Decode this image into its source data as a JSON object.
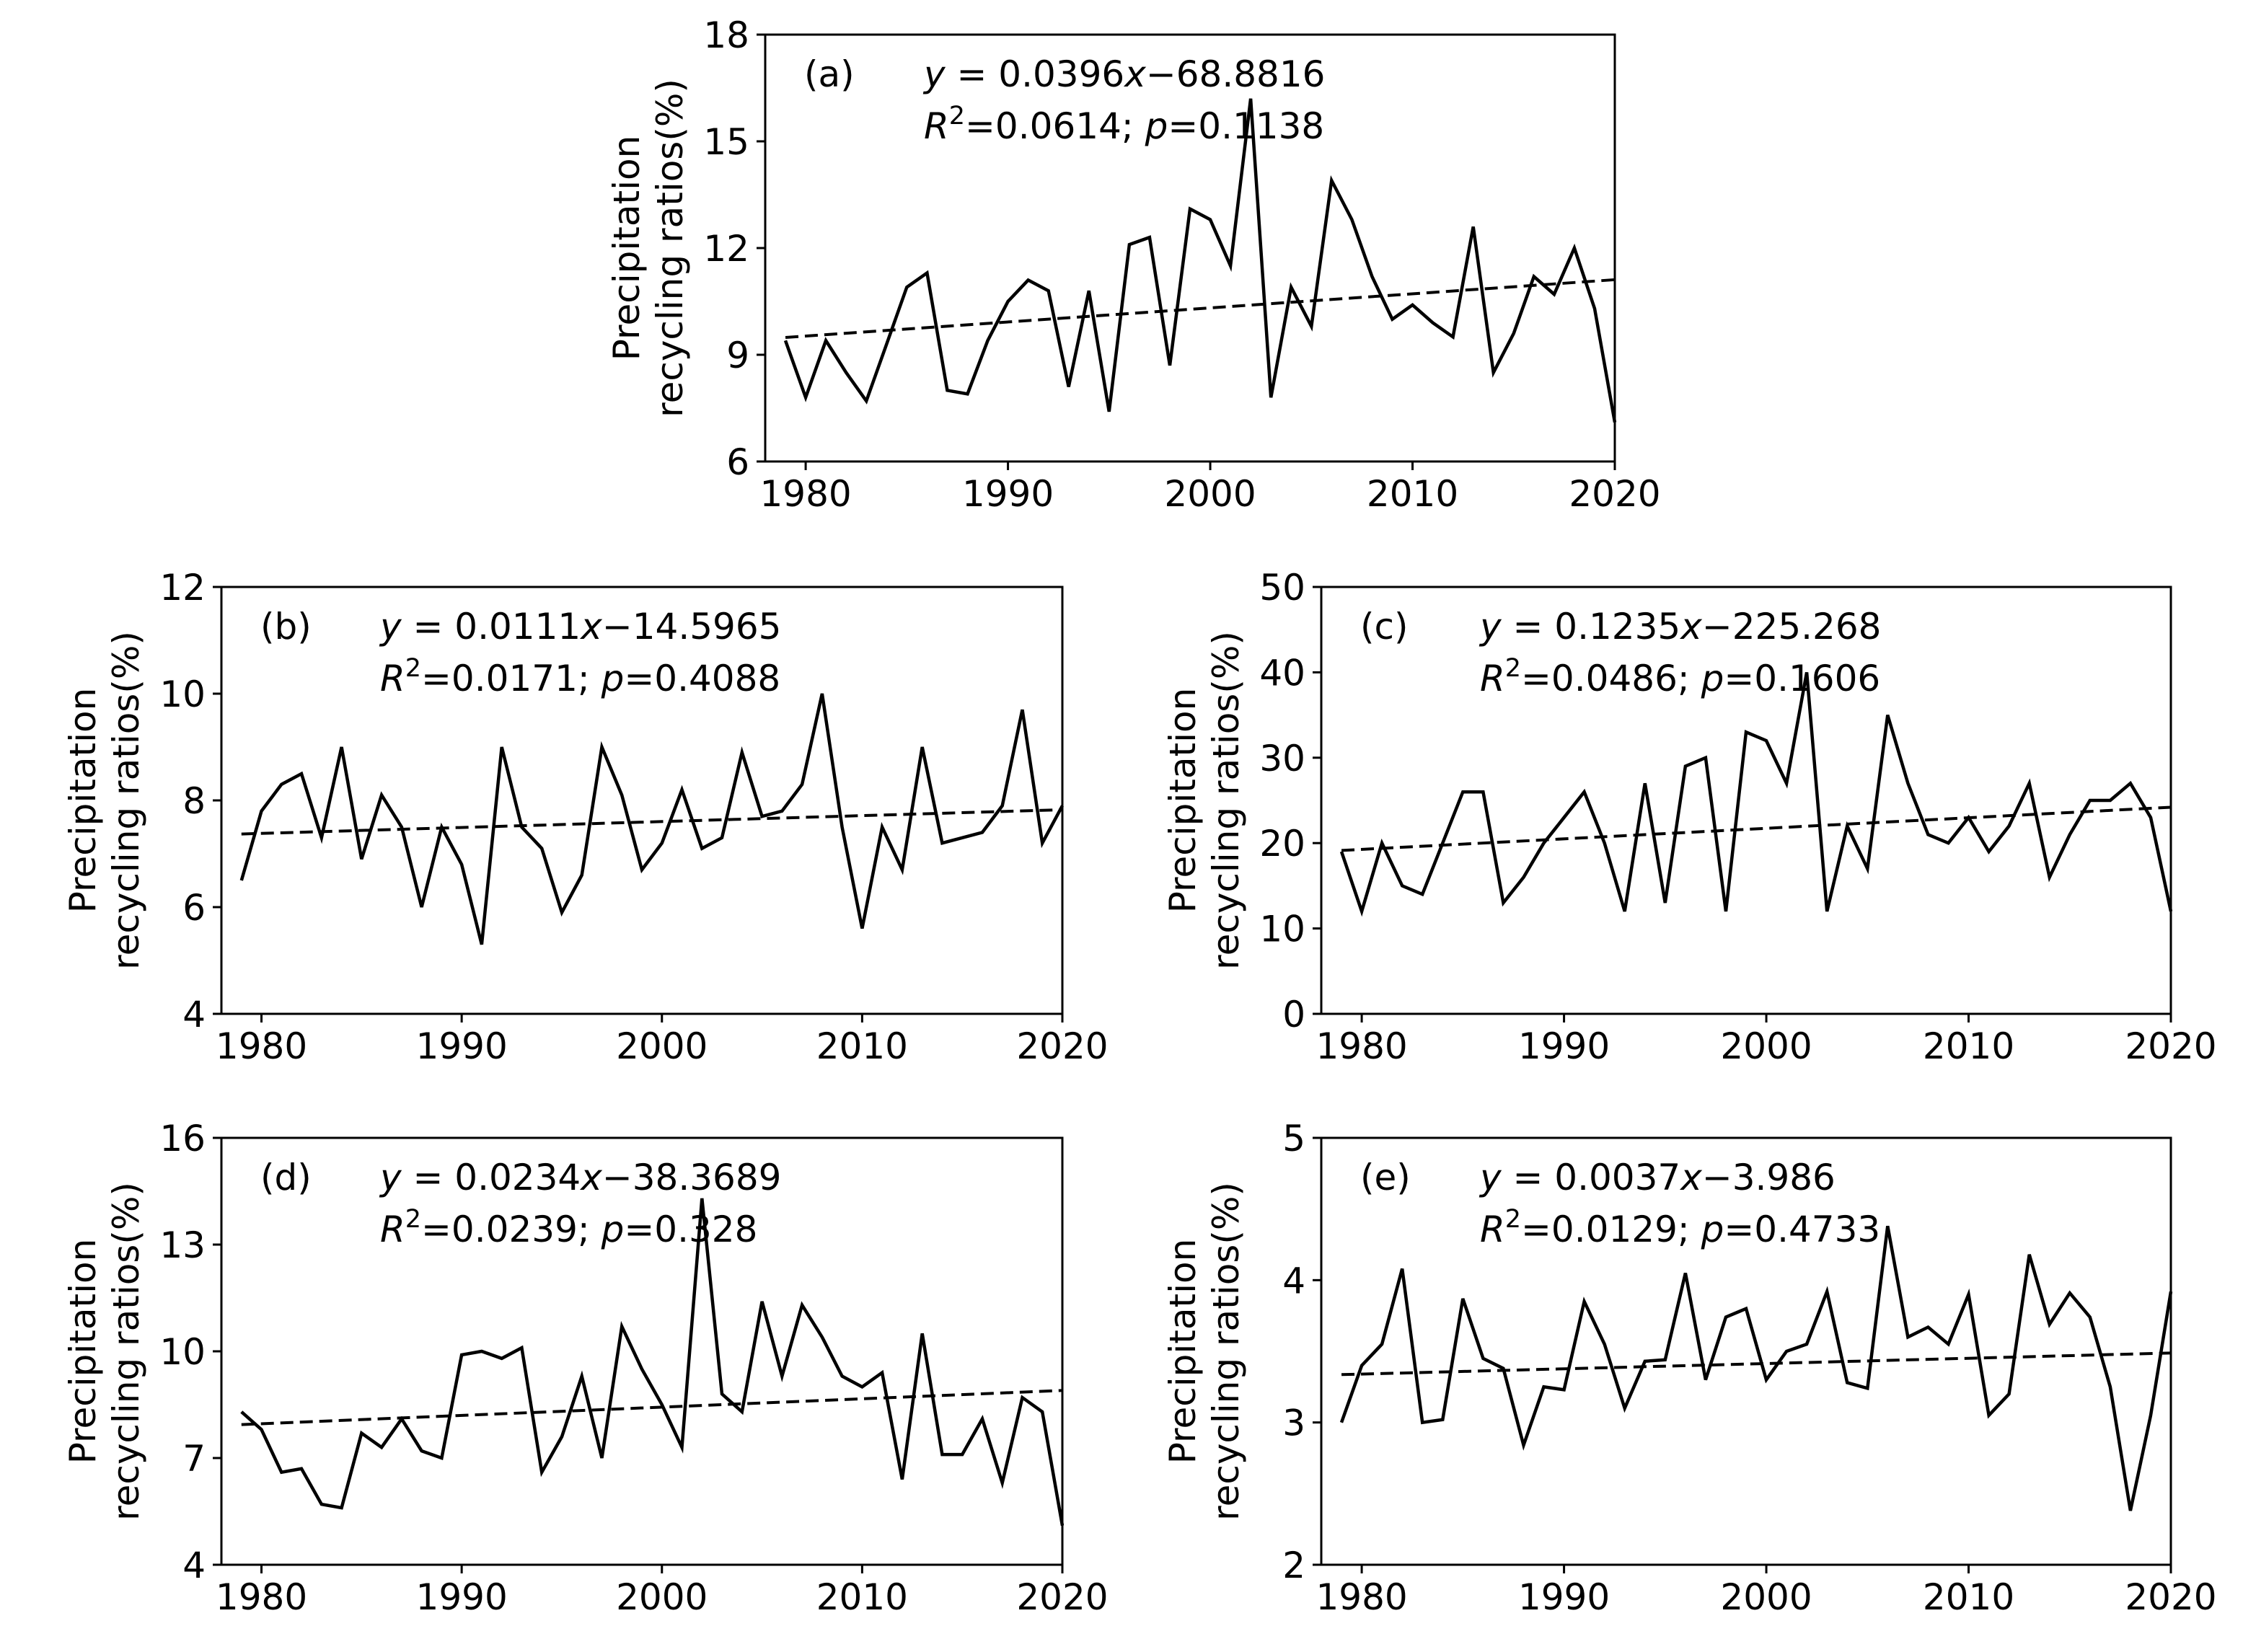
{
  "years_start": 1979,
  "chart_data": [
    {
      "type": "line",
      "panel": "(a)",
      "ylabel_line1": "Precipitation",
      "ylabel_line2": "recycling ratios(%)",
      "equation": "y = 0.0396x−68.8816",
      "r2_text": "R²=0.0614; p=0.1138",
      "slope": 0.0396,
      "intercept": -68.8816,
      "xlim": [
        1978,
        2020
      ],
      "xticks": [
        1980,
        1990,
        2000,
        2010,
        2020
      ],
      "ylim": [
        6,
        18
      ],
      "yticks": [
        6,
        9,
        12,
        15,
        18
      ],
      "x": [
        1979,
        1980,
        1981,
        1982,
        1983,
        1984,
        1985,
        1986,
        1987,
        1988,
        1989,
        1990,
        1991,
        1992,
        1993,
        1994,
        1995,
        1996,
        1997,
        1998,
        1999,
        2000,
        2001,
        2002,
        2003,
        2004,
        2005,
        2006,
        2007,
        2008,
        2009,
        2010,
        2011,
        2012,
        2013,
        2014,
        2015,
        2016,
        2017,
        2018,
        2019,
        2020
      ],
      "values": [
        9.4,
        7.8,
        9.4,
        8.5,
        7.7,
        9.3,
        10.9,
        11.3,
        8.0,
        7.9,
        9.4,
        10.5,
        11.1,
        10.8,
        8.1,
        10.8,
        7.4,
        12.1,
        12.3,
        8.7,
        13.1,
        12.8,
        11.5,
        16.2,
        7.8,
        10.9,
        9.8,
        13.9,
        12.8,
        11.2,
        10.0,
        10.4,
        9.9,
        9.5,
        12.6,
        8.5,
        9.6,
        11.2,
        10.7,
        12.0,
        10.3,
        7.1
      ]
    },
    {
      "type": "line",
      "panel": "(b)",
      "ylabel_line1": "Precipitation",
      "ylabel_line2": "recycling ratios(%)",
      "equation": "y = 0.0111x−14.5965",
      "r2_text": "R²=0.0171; p=0.4088",
      "slope": 0.0111,
      "intercept": -14.5965,
      "xlim": [
        1978,
        2020
      ],
      "xticks": [
        1980,
        1990,
        2000,
        2010,
        2020
      ],
      "ylim": [
        4,
        12
      ],
      "yticks": [
        4,
        6,
        8,
        10,
        12
      ],
      "x": [
        1979,
        1980,
        1981,
        1982,
        1983,
        1984,
        1985,
        1986,
        1987,
        1988,
        1989,
        1990,
        1991,
        1992,
        1993,
        1994,
        1995,
        1996,
        1997,
        1998,
        1999,
        2000,
        2001,
        2002,
        2003,
        2004,
        2005,
        2006,
        2007,
        2008,
        2009,
        2010,
        2011,
        2012,
        2013,
        2014,
        2015,
        2016,
        2017,
        2018,
        2019,
        2020
      ],
      "values": [
        6.5,
        7.8,
        8.3,
        8.5,
        7.3,
        9.0,
        6.9,
        8.1,
        7.5,
        6.0,
        7.5,
        6.8,
        5.3,
        9.0,
        7.5,
        7.1,
        5.9,
        6.6,
        9.0,
        8.1,
        6.7,
        7.2,
        8.2,
        7.1,
        7.3,
        8.9,
        7.7,
        7.8,
        8.3,
        10.0,
        7.5,
        5.6,
        7.5,
        6.7,
        9.0,
        7.2,
        7.3,
        7.4,
        7.9,
        9.7,
        7.2,
        7.9
      ]
    },
    {
      "type": "line",
      "panel": "(c)",
      "ylabel_line1": "Precipitation",
      "ylabel_line2": "recycling ratios(%)",
      "equation": "y = 0.1235x−225.268",
      "r2_text": "R²=0.0486; p=0.1606",
      "slope": 0.1235,
      "intercept": -225.268,
      "xlim": [
        1978,
        2020
      ],
      "xticks": [
        1980,
        1990,
        2000,
        2010,
        2020
      ],
      "ylim": [
        0,
        50
      ],
      "yticks": [
        0,
        10,
        20,
        30,
        40,
        50
      ],
      "x": [
        1979,
        1980,
        1981,
        1982,
        1983,
        1984,
        1985,
        1986,
        1987,
        1988,
        1989,
        1990,
        1991,
        1992,
        1993,
        1994,
        1995,
        1996,
        1997,
        1998,
        1999,
        2000,
        2001,
        2002,
        2003,
        2004,
        2005,
        2006,
        2007,
        2008,
        2009,
        2010,
        2011,
        2012,
        2013,
        2014,
        2015,
        2016,
        2017,
        2018,
        2019,
        2020
      ],
      "values": [
        19,
        12,
        20,
        15,
        14,
        20,
        26,
        26,
        13,
        16,
        20,
        23,
        26,
        20,
        12,
        27,
        13,
        29,
        30,
        12,
        33,
        32,
        27,
        40,
        12,
        22,
        17,
        35,
        27,
        21,
        20,
        23,
        19,
        22,
        27,
        16,
        21,
        25,
        25,
        27,
        23,
        12
      ]
    },
    {
      "type": "line",
      "panel": "(d)",
      "ylabel_line1": "Precipitation",
      "ylabel_line2": "recycling ratios(%)",
      "equation": "y = 0.0234x−38.3689",
      "r2_text": "R²=0.0239; p=0.328",
      "slope": 0.0234,
      "intercept": -38.3689,
      "xlim": [
        1978,
        2020
      ],
      "xticks": [
        1980,
        1990,
        2000,
        2010,
        2020
      ],
      "ylim": [
        4,
        16
      ],
      "yticks": [
        4,
        7,
        10,
        13,
        16
      ],
      "x": [
        1979,
        1980,
        1981,
        1982,
        1983,
        1984,
        1985,
        1986,
        1987,
        1988,
        1989,
        1990,
        1991,
        1992,
        1993,
        1994,
        1995,
        1996,
        1997,
        1998,
        1999,
        2000,
        2001,
        2002,
        2003,
        2004,
        2005,
        2006,
        2007,
        2008,
        2009,
        2010,
        2011,
        2012,
        2013,
        2014,
        2015,
        2016,
        2017,
        2018,
        2019,
        2020
      ],
      "values": [
        8.3,
        7.8,
        6.6,
        6.7,
        5.7,
        5.6,
        7.7,
        7.3,
        8.1,
        7.2,
        7.0,
        9.9,
        10.0,
        9.8,
        10.1,
        6.6,
        7.6,
        9.3,
        7.0,
        10.7,
        9.5,
        8.5,
        7.3,
        14.3,
        8.8,
        8.3,
        11.4,
        9.3,
        11.3,
        10.4,
        9.3,
        9.0,
        9.4,
        6.4,
        10.5,
        7.1,
        7.1,
        8.1,
        6.3,
        8.7,
        8.3,
        5.1
      ]
    },
    {
      "type": "line",
      "panel": "(e)",
      "ylabel_line1": "Precipitation",
      "ylabel_line2": "recycling ratios(%)",
      "equation": "y = 0.0037x−3.986",
      "r2_text": "R²=0.0129; p=0.4733",
      "slope": 0.0037,
      "intercept": -3.986,
      "xlim": [
        1978,
        2020
      ],
      "xticks": [
        1980,
        1990,
        2000,
        2010,
        2020
      ],
      "ylim": [
        2,
        5
      ],
      "yticks": [
        2,
        3,
        4,
        5
      ],
      "x": [
        1979,
        1980,
        1981,
        1982,
        1983,
        1984,
        1985,
        1986,
        1987,
        1988,
        1989,
        1990,
        1991,
        1992,
        1993,
        1994,
        1995,
        1996,
        1997,
        1998,
        1999,
        2000,
        2001,
        2002,
        2003,
        2004,
        2005,
        2006,
        2007,
        2008,
        2009,
        2010,
        2011,
        2012,
        2013,
        2014,
        2015,
        2016,
        2017,
        2018,
        2019,
        2020
      ],
      "values": [
        3.0,
        3.4,
        3.55,
        4.08,
        3.0,
        3.02,
        3.87,
        3.45,
        3.38,
        2.84,
        3.25,
        3.23,
        3.85,
        3.55,
        3.1,
        3.43,
        3.44,
        4.05,
        3.3,
        3.74,
        3.8,
        3.3,
        3.5,
        3.55,
        3.92,
        3.28,
        3.24,
        4.38,
        3.6,
        3.67,
        3.55,
        3.9,
        3.05,
        3.2,
        4.18,
        3.69,
        3.91,
        3.74,
        3.25,
        2.38,
        3.05,
        3.92
      ]
    }
  ]
}
